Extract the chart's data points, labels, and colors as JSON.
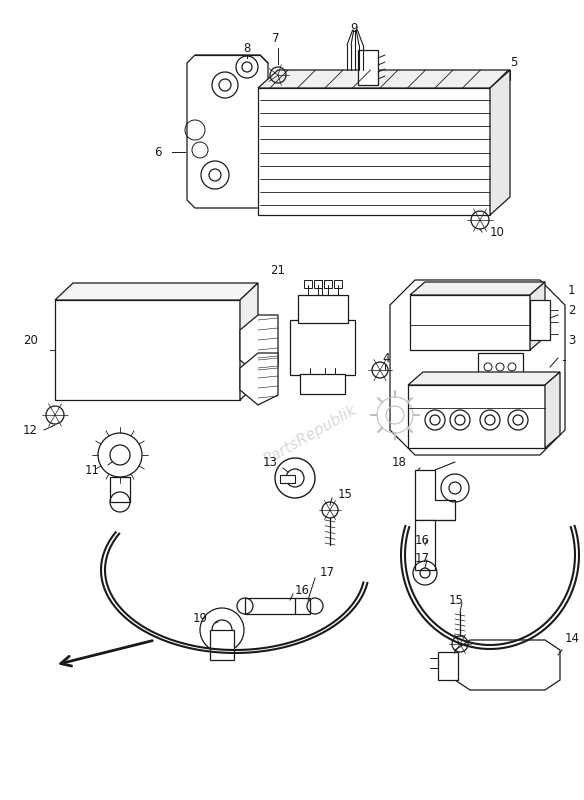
{
  "bg_color": "#ffffff",
  "line_color": "#1a1a1a",
  "watermark_color": "#c0c0c0",
  "watermark_text": "PartsRepublik",
  "fig_width": 5.84,
  "fig_height": 8.0,
  "dpi": 100
}
